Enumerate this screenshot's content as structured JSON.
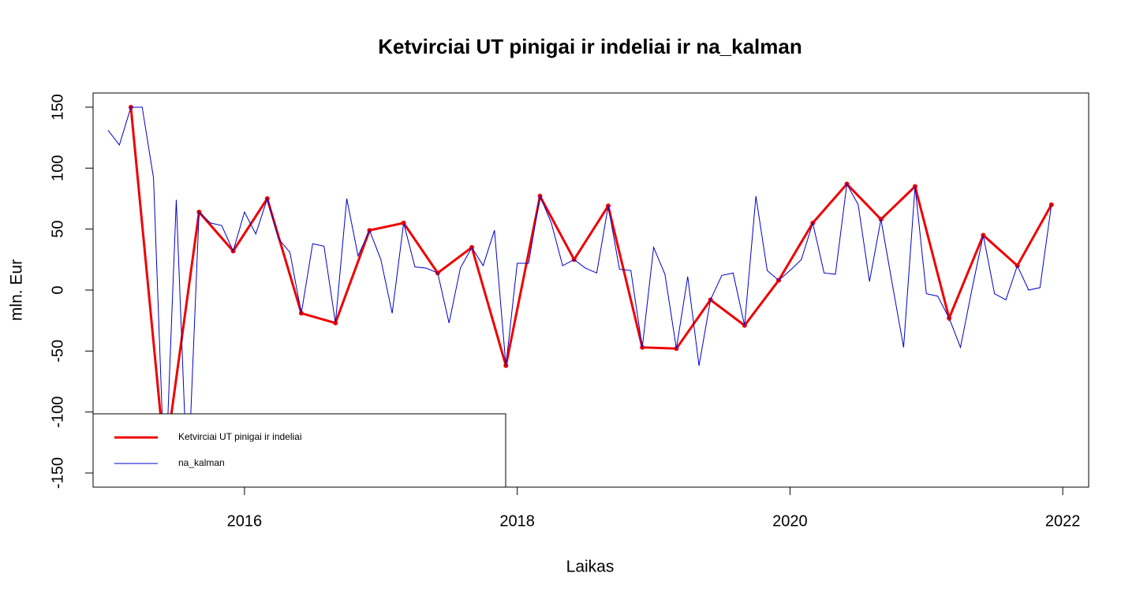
{
  "chart_data": {
    "type": "line",
    "title": "Ketvirciai UT pinigai ir indeliai ir na_kalman",
    "x_label": "Laikas",
    "y_label": "mln. Eur",
    "xlim": [
      2014.89,
      2022.19
    ],
    "ylim": [
      -161.6,
      161.6
    ],
    "xticks": [
      2016,
      2018,
      2020,
      2022
    ],
    "yticks": [
      -150,
      -100,
      -50,
      0,
      50,
      100,
      150
    ],
    "legend": "bottom-left",
    "series": [
      {
        "name": "Ketvirciai UT pinigai ir indeliai",
        "color": "#ee0000",
        "points": true,
        "x": [
          2015.167,
          2015.417,
          2015.667,
          2015.917,
          2016.167,
          2016.417,
          2016.667,
          2016.917,
          2017.167,
          2017.417,
          2017.667,
          2017.917,
          2018.167,
          2018.417,
          2018.667,
          2018.917,
          2019.167,
          2019.417,
          2019.667,
          2019.917,
          2020.167,
          2020.417,
          2020.667,
          2020.917,
          2021.167,
          2021.417,
          2021.667,
          2021.917
        ],
        "values": [
          150,
          -140,
          64,
          32,
          75,
          -19,
          -27,
          49,
          55,
          14,
          35,
          -62,
          77,
          25,
          69,
          -47,
          -48,
          -8,
          -29,
          8,
          55,
          87,
          58,
          85,
          -23,
          45,
          20,
          70
        ]
      },
      {
        "name": "na_kalman",
        "color": "#0000cc",
        "points": false,
        "x": [
          2015.0,
          2015.083,
          2015.167,
          2015.25,
          2015.333,
          2015.417,
          2015.5,
          2015.583,
          2015.667,
          2015.75,
          2015.833,
          2015.917,
          2016.0,
          2016.083,
          2016.167,
          2016.25,
          2016.333,
          2016.417,
          2016.5,
          2016.583,
          2016.667,
          2016.75,
          2016.833,
          2016.917,
          2017.0,
          2017.083,
          2017.167,
          2017.25,
          2017.333,
          2017.417,
          2017.5,
          2017.583,
          2017.667,
          2017.75,
          2017.833,
          2017.917,
          2018.0,
          2018.083,
          2018.167,
          2018.25,
          2018.333,
          2018.417,
          2018.5,
          2018.583,
          2018.667,
          2018.75,
          2018.833,
          2018.917,
          2019.0,
          2019.083,
          2019.167,
          2019.25,
          2019.333,
          2019.417,
          2019.5,
          2019.583,
          2019.667,
          2019.75,
          2019.833,
          2019.917,
          2020.0,
          2020.083,
          2020.167,
          2020.25,
          2020.333,
          2020.417,
          2020.5,
          2020.583,
          2020.667,
          2020.75,
          2020.833,
          2020.917,
          2021.0,
          2021.083,
          2021.167,
          2021.25,
          2021.333,
          2021.417,
          2021.5,
          2021.583,
          2021.667,
          2021.75,
          2021.833,
          2021.917
        ],
        "values": [
          131,
          119,
          150,
          150,
          92,
          -165,
          74,
          -165,
          64,
          55,
          53,
          32,
          64,
          46,
          75,
          42,
          31,
          -19,
          38,
          36,
          -27,
          75,
          28,
          49,
          25,
          -19,
          55,
          19,
          18,
          14,
          -27,
          18,
          35,
          20,
          49,
          -62,
          22,
          22,
          77,
          55,
          20,
          25,
          18,
          14,
          69,
          17,
          16,
          -47,
          35,
          13,
          -48,
          11,
          -62,
          -8,
          12,
          14,
          -29,
          77,
          16,
          8,
          16,
          25,
          55,
          14,
          13,
          87,
          70,
          7,
          58,
          5,
          -47,
          85,
          -3,
          -5,
          -23,
          -47,
          0,
          45,
          -3,
          -8,
          20,
          0,
          2,
          70
        ]
      }
    ]
  }
}
